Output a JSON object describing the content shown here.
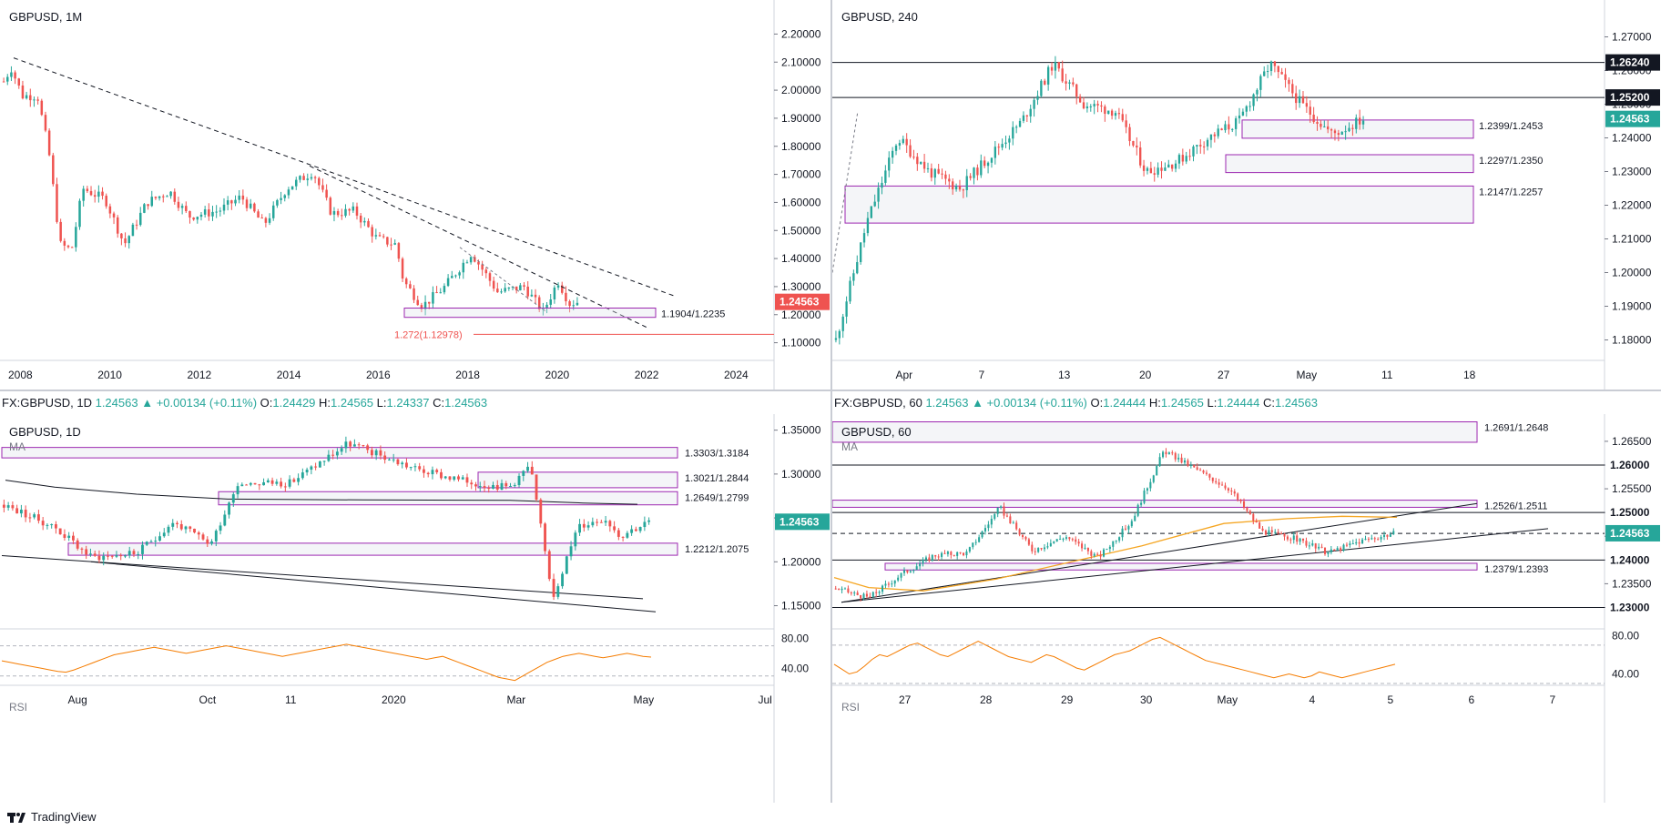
{
  "footer": {
    "brand": "TradingView"
  },
  "ohlc_bars": [
    {
      "symbol": "FX:GBPUSD, 1D",
      "last": "1.24563",
      "change": "▲ +0.00134 (+0.11%)",
      "o_label": "O:",
      "o": "1.24429",
      "h_label": "H:",
      "h": "1.24565",
      "l_label": "L:",
      "l": "1.24337",
      "c_label": "C:",
      "c": "1.24563"
    },
    {
      "symbol": "FX:GBPUSD, 60",
      "last": "1.24563",
      "change": "▲ +0.00134 (+0.11%)",
      "o_label": "O:",
      "o": "1.24444",
      "h_label": "H:",
      "h": "1.24565",
      "l_label": "L:",
      "l": "1.24444",
      "c_label": "C:",
      "c": "1.24563"
    }
  ],
  "colors": {
    "up": "#26a69a",
    "down": "#ef5350",
    "zone": "#9c27b0",
    "ma_1d": "#131722",
    "ma_60": "#f5a623",
    "rsi": "#f57c00",
    "grid": "#e0e3eb",
    "text": "#131722"
  },
  "chart_data": [
    {
      "type": "candlestick",
      "title": "GBPUSD, 1M",
      "ylim": [
        1.05,
        2.25
      ],
      "y_ticks": [
        "2.20000",
        "2.10000",
        "2.00000",
        "1.90000",
        "1.80000",
        "1.70000",
        "1.60000",
        "1.50000",
        "1.40000",
        "1.30000",
        "1.20000",
        "1.10000"
      ],
      "x_ticks": [
        "2008",
        "2010",
        "2012",
        "2014",
        "2016",
        "2018",
        "2020",
        "2022",
        "2024"
      ],
      "price_label": "1.24563",
      "zones": [
        {
          "label": "1.1904/1.2235",
          "low": 1.1904,
          "high": 1.2235
        }
      ],
      "annotations": [
        {
          "label": "1.272(1.12978)",
          "value": 1.12978
        }
      ],
      "close_path": [
        {
          "date": "2007-09",
          "value": 2.03
        },
        {
          "date": "2007-11",
          "value": 2.08
        },
        {
          "date": "2008-02",
          "value": 1.98
        },
        {
          "date": "2008-06",
          "value": 1.98
        },
        {
          "date": "2008-09",
          "value": 1.78
        },
        {
          "date": "2008-12",
          "value": 1.45
        },
        {
          "date": "2009-03",
          "value": 1.43
        },
        {
          "date": "2009-06",
          "value": 1.65
        },
        {
          "date": "2009-12",
          "value": 1.61
        },
        {
          "date": "2010-05",
          "value": 1.45
        },
        {
          "date": "2010-11",
          "value": 1.6
        },
        {
          "date": "2011-05",
          "value": 1.64
        },
        {
          "date": "2011-10",
          "value": 1.55
        },
        {
          "date": "2012-06",
          "value": 1.57
        },
        {
          "date": "2012-12",
          "value": 1.62
        },
        {
          "date": "2013-06",
          "value": 1.52
        },
        {
          "date": "2013-12",
          "value": 1.65
        },
        {
          "date": "2014-07",
          "value": 1.71
        },
        {
          "date": "2014-12",
          "value": 1.56
        },
        {
          "date": "2015-06",
          "value": 1.57
        },
        {
          "date": "2015-12",
          "value": 1.47
        },
        {
          "date": "2016-05",
          "value": 1.45
        },
        {
          "date": "2016-07",
          "value": 1.32
        },
        {
          "date": "2016-12",
          "value": 1.23
        },
        {
          "date": "2017-06",
          "value": 1.3
        },
        {
          "date": "2018-01",
          "value": 1.42
        },
        {
          "date": "2018-08",
          "value": 1.28
        },
        {
          "date": "2019-03",
          "value": 1.3
        },
        {
          "date": "2019-08",
          "value": 1.21
        },
        {
          "date": "2019-12",
          "value": 1.32
        },
        {
          "date": "2020-03",
          "value": 1.24
        },
        {
          "date": "2020-05",
          "value": 1.2456
        }
      ]
    },
    {
      "type": "candlestick",
      "title": "GBPUSD, 240",
      "ylim": [
        1.175,
        1.275
      ],
      "y_ticks": [
        "1.27000",
        "1.26000",
        "1.25000",
        "1.24000",
        "1.23000",
        "1.22000",
        "1.21000",
        "1.20000",
        "1.19000",
        "1.18000"
      ],
      "x_ticks": [
        "Apr",
        "7",
        "13",
        "20",
        "27",
        "May",
        "11",
        "18"
      ],
      "price_labels": [
        "1.26240",
        "1.25200",
        "1.24563"
      ],
      "lines": [
        1.2624,
        1.252
      ],
      "zones": [
        {
          "label": "1.2399/1.2453",
          "low": 1.2399,
          "high": 1.2453
        },
        {
          "label": "1.2297/1.2350",
          "low": 1.2297,
          "high": 1.235
        },
        {
          "label": "1.2147/1.2257",
          "low": 1.2147,
          "high": 1.2257
        }
      ],
      "close_path": [
        {
          "date": "Mar 30",
          "value": 1.18
        },
        {
          "date": "Mar 31",
          "value": 1.215
        },
        {
          "date": "Apr 1",
          "value": 1.24
        },
        {
          "date": "Apr 3",
          "value": 1.23
        },
        {
          "date": "Apr 6",
          "value": 1.225
        },
        {
          "date": "Apr 8",
          "value": 1.235
        },
        {
          "date": "Apr 10",
          "value": 1.245
        },
        {
          "date": "Apr 14",
          "value": 1.262
        },
        {
          "date": "Apr 15",
          "value": 1.25
        },
        {
          "date": "Apr 17",
          "value": 1.248
        },
        {
          "date": "Apr 21",
          "value": 1.23
        },
        {
          "date": "Apr 23",
          "value": 1.233
        },
        {
          "date": "Apr 27",
          "value": 1.24
        },
        {
          "date": "Apr 29",
          "value": 1.245
        },
        {
          "date": "Apr 30",
          "value": 1.262
        },
        {
          "date": "May 1",
          "value": 1.25
        },
        {
          "date": "May 4",
          "value": 1.241
        },
        {
          "date": "May 5",
          "value": 1.2456
        }
      ]
    },
    {
      "type": "candlestick",
      "title": "GBPUSD, 1D",
      "indicator": "MA",
      "ylim": [
        1.135,
        1.36
      ],
      "y_ticks": [
        "1.35000",
        "1.30000",
        "1.25000",
        "1.20000",
        "1.15000"
      ],
      "x_ticks": [
        "Aug",
        "Oct",
        "11",
        "2020",
        "Mar",
        "May",
        "Jul"
      ],
      "price_label": "1.24563",
      "zones": [
        {
          "label": "1.3303/1.3184",
          "low": 1.3184,
          "high": 1.3303
        },
        {
          "label": "1.3021/1.2844",
          "low": 1.2844,
          "high": 1.3021
        },
        {
          "label": "1.2649/1.2799",
          "low": 1.2649,
          "high": 1.2799
        },
        {
          "label": "1.2212/1.2075",
          "low": 1.2075,
          "high": 1.2212
        }
      ],
      "close_path": [
        {
          "date": "2019-07-01",
          "value": 1.265
        },
        {
          "date": "2019-07-25",
          "value": 1.24
        },
        {
          "date": "2019-08-12",
          "value": 1.205
        },
        {
          "date": "2019-09-03",
          "value": 1.21
        },
        {
          "date": "2019-09-20",
          "value": 1.245
        },
        {
          "date": "2019-10-08",
          "value": 1.22
        },
        {
          "date": "2019-10-21",
          "value": 1.29
        },
        {
          "date": "2019-11-15",
          "value": 1.29
        },
        {
          "date": "2019-12-13",
          "value": 1.335
        },
        {
          "date": "2020-01-15",
          "value": 1.305
        },
        {
          "date": "2020-02-10",
          "value": 1.29
        },
        {
          "date": "2020-02-28",
          "value": 1.285
        },
        {
          "date": "2020-03-09",
          "value": 1.31
        },
        {
          "date": "2020-03-20",
          "value": 1.16
        },
        {
          "date": "2020-04-01",
          "value": 1.24
        },
        {
          "date": "2020-04-14",
          "value": 1.25
        },
        {
          "date": "2020-04-21",
          "value": 1.23
        },
        {
          "date": "2020-05-05",
          "value": 1.2456
        }
      ],
      "rsi": {
        "label": "RSI",
        "ylim": [
          20,
          90
        ],
        "y_ticks": [
          "80.00",
          "40.00"
        ],
        "values": [
          50,
          48,
          46,
          44,
          42,
          40,
          38,
          36,
          35,
          38,
          42,
          46,
          50,
          54,
          58,
          60,
          62,
          64,
          66,
          68,
          66,
          64,
          62,
          60,
          62,
          64,
          66,
          68,
          70,
          68,
          66,
          64,
          62,
          60,
          58,
          56,
          58,
          60,
          62,
          64,
          66,
          68,
          70,
          72,
          70,
          68,
          66,
          64,
          62,
          60,
          58,
          56,
          54,
          52,
          54,
          56,
          52,
          48,
          44,
          40,
          36,
          32,
          28,
          26,
          24,
          30,
          36,
          42,
          48,
          52,
          56,
          58,
          60,
          58,
          56,
          54,
          56,
          58,
          60,
          58,
          56,
          55
        ]
      }
    },
    {
      "type": "candlestick",
      "title": "GBPUSD, 60",
      "indicator": "MA",
      "ylim": [
        1.2276,
        1.2692
      ],
      "y_ticks": [
        "1.26500",
        "1.26000",
        "1.25500",
        "1.25000",
        "1.24500",
        "1.24000",
        "1.23500",
        "1.23000"
      ],
      "x_ticks": [
        "27",
        "28",
        "29",
        "30",
        "May",
        "4",
        "5",
        "6",
        "7"
      ],
      "price_labels": [
        "1.26000",
        "1.25000",
        "1.24563",
        "1.24000",
        "1.23000"
      ],
      "lines": [
        1.26,
        1.25,
        1.24,
        1.23
      ],
      "dashed_line": 1.2456,
      "zones": [
        {
          "label": "1.2691/1.2648",
          "low": 1.2648,
          "high": 1.2691
        },
        {
          "label": "1.2526/1.2511",
          "low": 1.2511,
          "high": 1.2526
        },
        {
          "label": "1.2379/1.2393",
          "low": 1.2379,
          "high": 1.2393
        }
      ],
      "close_path": [
        {
          "date": "Apr 24 20:00",
          "value": 1.234
        },
        {
          "date": "Apr 27 00:00",
          "value": 1.232
        },
        {
          "date": "Apr 27 12:00",
          "value": 1.237
        },
        {
          "date": "Apr 28 00:00",
          "value": 1.241
        },
        {
          "date": "Apr 28 12:00",
          "value": 1.2415
        },
        {
          "date": "Apr 28 20:00",
          "value": 1.251
        },
        {
          "date": "Apr 29 04:00",
          "value": 1.242
        },
        {
          "date": "Apr 29 16:00",
          "value": 1.245
        },
        {
          "date": "Apr 30 00:00",
          "value": 1.2405
        },
        {
          "date": "Apr 30 08:00",
          "value": 1.248
        },
        {
          "date": "Apr 30 14:00",
          "value": 1.263
        },
        {
          "date": "May 1 00:00",
          "value": 1.259
        },
        {
          "date": "May 1 12:00",
          "value": 1.255
        },
        {
          "date": "May 4 00:00",
          "value": 1.246
        },
        {
          "date": "May 4 08:00",
          "value": 1.2445
        },
        {
          "date": "May 4 14:00",
          "value": 1.2415
        },
        {
          "date": "May 5 00:00",
          "value": 1.244
        },
        {
          "date": "May 5 06:00",
          "value": 1.2456
        }
      ],
      "rsi": {
        "label": "RSI",
        "ylim": [
          30,
          85
        ],
        "y_ticks": [
          "80.00",
          "40.00"
        ],
        "values": [
          50,
          45,
          40,
          42,
          48,
          55,
          60,
          58,
          62,
          66,
          70,
          72,
          68,
          64,
          60,
          58,
          62,
          66,
          70,
          74,
          70,
          66,
          62,
          58,
          56,
          54,
          52,
          56,
          60,
          58,
          54,
          50,
          46,
          44,
          48,
          52,
          56,
          60,
          62,
          64,
          68,
          72,
          76,
          78,
          74,
          70,
          66,
          62,
          58,
          54,
          52,
          50,
          48,
          46,
          44,
          42,
          40,
          38,
          36,
          38,
          40,
          38,
          36,
          38,
          42,
          40,
          38,
          36,
          38,
          40,
          42,
          44,
          46,
          48,
          50
        ]
      }
    }
  ]
}
